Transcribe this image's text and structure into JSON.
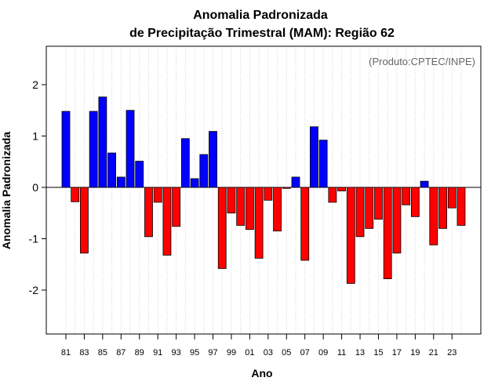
{
  "chart_data": {
    "type": "bar",
    "title": "Anomalia Padronizada",
    "subtitle": "de Precipitação Trimestral (MAM): Região 62",
    "xlabel": "Ano",
    "ylabel": "Anomalia Padronizada",
    "annotation": "(Produto:CPTEC/INPE)",
    "ylim": [
      -2.9,
      2.8
    ],
    "yticks": [
      -2,
      -1,
      0,
      1,
      2
    ],
    "grid": true,
    "colors": {
      "positive": "#0000ff",
      "negative": "#ff0000",
      "grid": "#d3d3d3"
    },
    "categories": [
      "1981",
      "1982",
      "1983",
      "1984",
      "1985",
      "1986",
      "1987",
      "1988",
      "1989",
      "1990",
      "1991",
      "1992",
      "1993",
      "1994",
      "1995",
      "1996",
      "1997",
      "1998",
      "1999",
      "2000",
      "2001",
      "2002",
      "2003",
      "2004",
      "2005",
      "2006",
      "2007",
      "2008",
      "2009",
      "2010",
      "2011",
      "2012",
      "2013",
      "2014",
      "2015",
      "2016",
      "2017",
      "2018",
      "2019",
      "2020",
      "2021",
      "2022",
      "2023",
      "2024"
    ],
    "values": [
      1.48,
      -0.28,
      -1.28,
      1.48,
      1.76,
      0.67,
      0.2,
      1.5,
      0.51,
      -0.96,
      -0.29,
      -1.32,
      -0.76,
      0.95,
      0.17,
      0.64,
      1.09,
      -1.58,
      -0.5,
      -0.74,
      -0.82,
      -1.38,
      -0.25,
      -0.85,
      -0.02,
      0.2,
      -1.42,
      1.18,
      0.92,
      -0.29,
      -0.07,
      -1.87,
      -0.96,
      -0.8,
      -0.62,
      -1.78,
      -1.28,
      -0.34,
      -0.57,
      0.12,
      -1.12,
      -0.8,
      -0.4,
      -0.74
    ],
    "xtick_labels": [
      "81",
      "83",
      "85",
      "87",
      "89",
      "91",
      "93",
      "95",
      "97",
      "99",
      "01",
      "03",
      "05",
      "07",
      "09",
      "11",
      "13",
      "15",
      "17",
      "19",
      "21",
      "23"
    ]
  }
}
